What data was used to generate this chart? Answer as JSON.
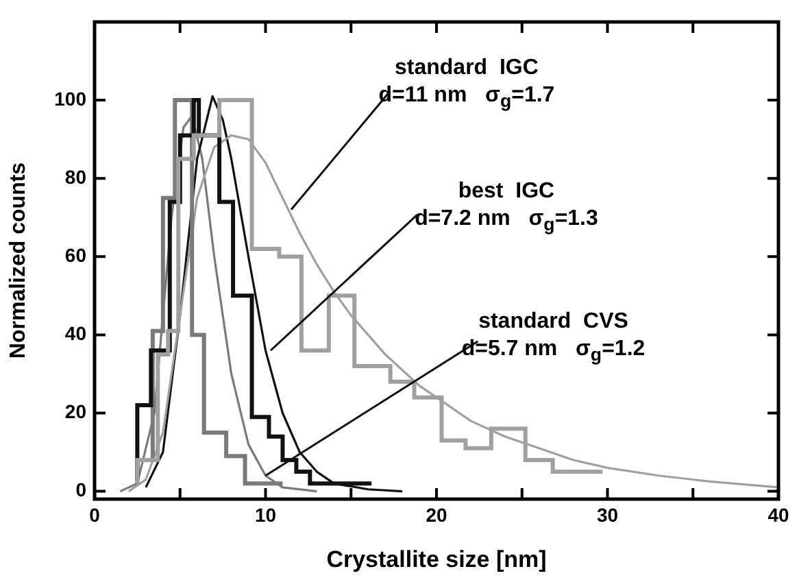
{
  "chart_data": {
    "type": "step",
    "xlabel": "Crystallite size [nm]",
    "ylabel": "Normalized counts",
    "xlim": [
      0,
      40
    ],
    "xticks": [
      0,
      {
        "value": 5,
        "label": null
      },
      10,
      {
        "value": 15,
        "label": null
      },
      20,
      {
        "value": 25,
        "label": null
      },
      30,
      {
        "value": 35,
        "label": null
      },
      40
    ],
    "ylim": [
      -2,
      120
    ],
    "yticks": [
      0,
      20,
      40,
      60,
      80,
      100
    ],
    "grid": false,
    "legend": false,
    "series": [
      {
        "color": "#a0a0a0",
        "x": [
          2.5,
          3.7,
          4.3,
          4.9,
          5.8,
          7.3,
          9.2,
          10.8,
          12.1,
          13.7,
          15.2,
          17.3,
          18.7,
          20.3,
          21.7,
          23.2,
          25.2,
          26.8,
          28.4,
          29.7
        ],
        "values": [
          2,
          8,
          35,
          41,
          85,
          91,
          100,
          62,
          60,
          36,
          50,
          32,
          28,
          24,
          13,
          11,
          16,
          8,
          5,
          5
        ]
      },
      {
        "color": "#111111",
        "x": [
          2.5,
          3.3,
          4.4,
          5.0,
          5.8,
          6.1,
          7.3,
          8.1,
          9.2,
          10.2,
          11.0,
          11.8,
          12.6,
          13.2,
          16.2
        ],
        "values": [
          3,
          22,
          36,
          74,
          91,
          100,
          91,
          74,
          50,
          19,
          14,
          8,
          5,
          2,
          2
        ]
      },
      {
        "color": "#7a7a7a",
        "x": [
          2.5,
          3.4,
          4.0,
          4.7,
          5.7,
          6.4,
          7.7,
          8.8,
          10.0,
          11.0
        ],
        "values": [
          2,
          8,
          41,
          75,
          100,
          40,
          15,
          9,
          2,
          2
        ]
      },
      {
        "type": "line",
        "color": "#a0a0a0",
        "x": [
          2,
          3,
          4,
          5,
          6,
          7,
          8,
          9,
          10,
          11,
          12,
          13,
          14,
          15,
          16,
          17,
          18,
          19,
          20,
          22,
          24,
          26,
          28,
          30,
          33,
          36,
          40
        ],
        "values": [
          0,
          3,
          15,
          45,
          75,
          88,
          91,
          90,
          84,
          75,
          66,
          58,
          51,
          45,
          40,
          35,
          31,
          27,
          24,
          18,
          14,
          11,
          8,
          6,
          4,
          2.5,
          1
        ]
      },
      {
        "type": "line",
        "color": "#111111",
        "x": [
          3,
          4,
          5,
          6,
          6.9,
          7.5,
          8,
          9,
          10,
          11,
          12,
          13,
          14,
          16,
          18
        ],
        "values": [
          1,
          10,
          45,
          85,
          101,
          95,
          85,
          60,
          36,
          20,
          10,
          5,
          2,
          0.5,
          0
        ]
      },
      {
        "type": "line",
        "color": "#7a7a7a",
        "x": [
          1.5,
          2.5,
          3.5,
          4.5,
          5.2,
          5.7,
          6.3,
          7,
          8,
          9,
          10,
          11,
          13
        ],
        "values": [
          0,
          2,
          20,
          70,
          93,
          96,
          85,
          60,
          30,
          12,
          4,
          1,
          0
        ]
      }
    ],
    "annotations": [
      {
        "text": "standard  IGC\nd=11 nm   σ$_{g}$=1.7",
        "x": 11.5,
        "y": 72
      },
      {
        "text": "best  IGC\nd=7.2 nm   σ$_{g}$=1.3",
        "x": 10.3,
        "y": 36
      },
      {
        "text": "standard  CVS\nd=5.7 nm   σ$_{g}$=1.2",
        "x": 10,
        "y": 4
      }
    ]
  }
}
